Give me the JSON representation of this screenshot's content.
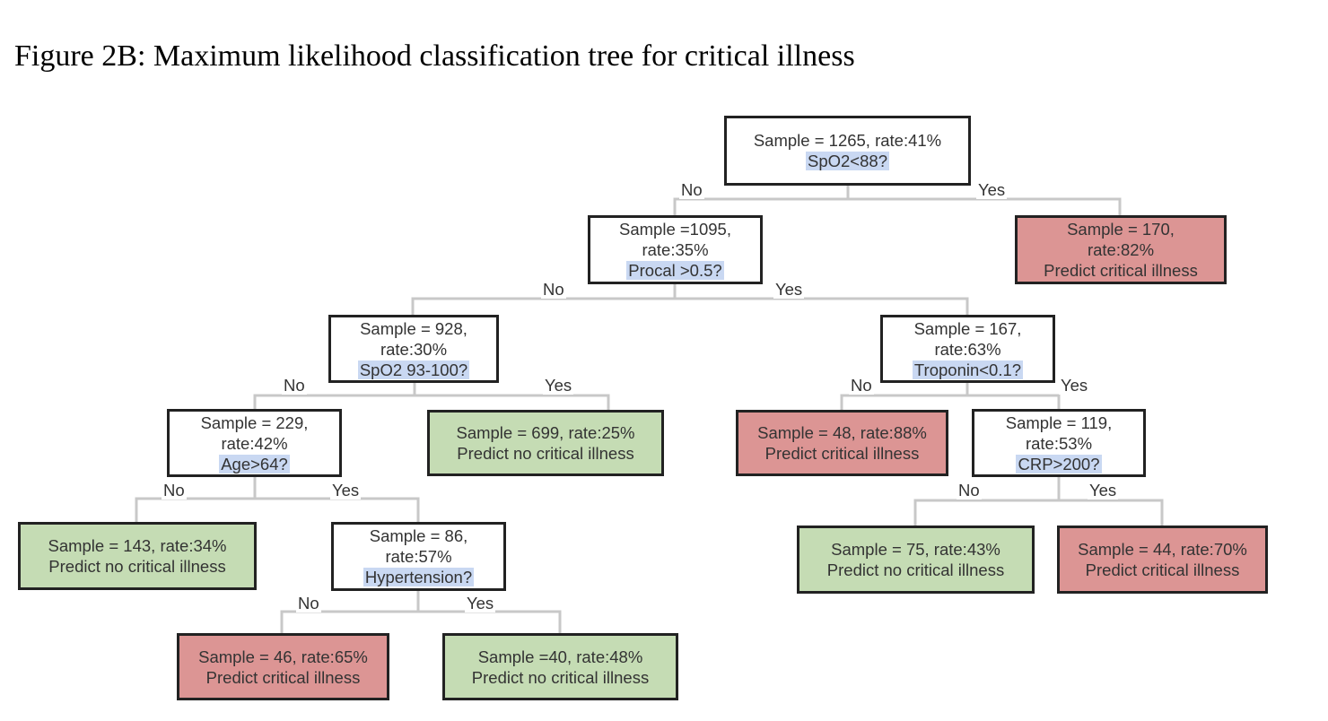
{
  "title": "Figure 2B: Maximum likelihood classification tree for critical illness",
  "colors": {
    "critical": "#dc9594",
    "no_critical": "#c5dcb4",
    "question_highlight": "#c9d8f2",
    "line": "#c8c8c8"
  },
  "labels": {
    "no": "No",
    "yes": "Yes"
  },
  "nodes": {
    "root": {
      "line1": "Sample = 1265, rate:41%",
      "question": "SpO2<88?"
    },
    "n1095": {
      "line1": "Sample =1095,",
      "line2": "rate:35%",
      "question": "Procal >0.5?"
    },
    "n170": {
      "line1": "Sample = 170,",
      "line2": "rate:82%",
      "line3": "Predict critical illness"
    },
    "n928": {
      "line1": "Sample = 928,",
      "line2": "rate:30%",
      "question": "SpO2 93-100?"
    },
    "n167": {
      "line1": "Sample = 167,",
      "line2": "rate:63%",
      "question": "Troponin<0.1?"
    },
    "n229": {
      "line1": "Sample = 229,",
      "line2": "rate:42%",
      "question": "Age>64?"
    },
    "n699": {
      "line1": "Sample = 699, rate:25%",
      "line2": "Predict no critical illness"
    },
    "n48": {
      "line1": "Sample = 48, rate:88%",
      "line2": "Predict critical illness"
    },
    "n119": {
      "line1": "Sample = 119,",
      "line2": "rate:53%",
      "question": "CRP>200?"
    },
    "n143": {
      "line1": "Sample = 143, rate:34%",
      "line2": "Predict no critical illness"
    },
    "n86": {
      "line1": "Sample = 86,",
      "line2": "rate:57%",
      "question": "Hypertension?"
    },
    "n75": {
      "line1": "Sample = 75, rate:43%",
      "line2": "Predict no critical illness"
    },
    "n44": {
      "line1": "Sample = 44, rate:70%",
      "line2": "Predict critical illness"
    },
    "n46": {
      "line1": "Sample = 46, rate:65%",
      "line2": "Predict critical illness"
    },
    "n40": {
      "line1": "Sample =40, rate:48%",
      "line2": "Predict no critical illness"
    }
  }
}
